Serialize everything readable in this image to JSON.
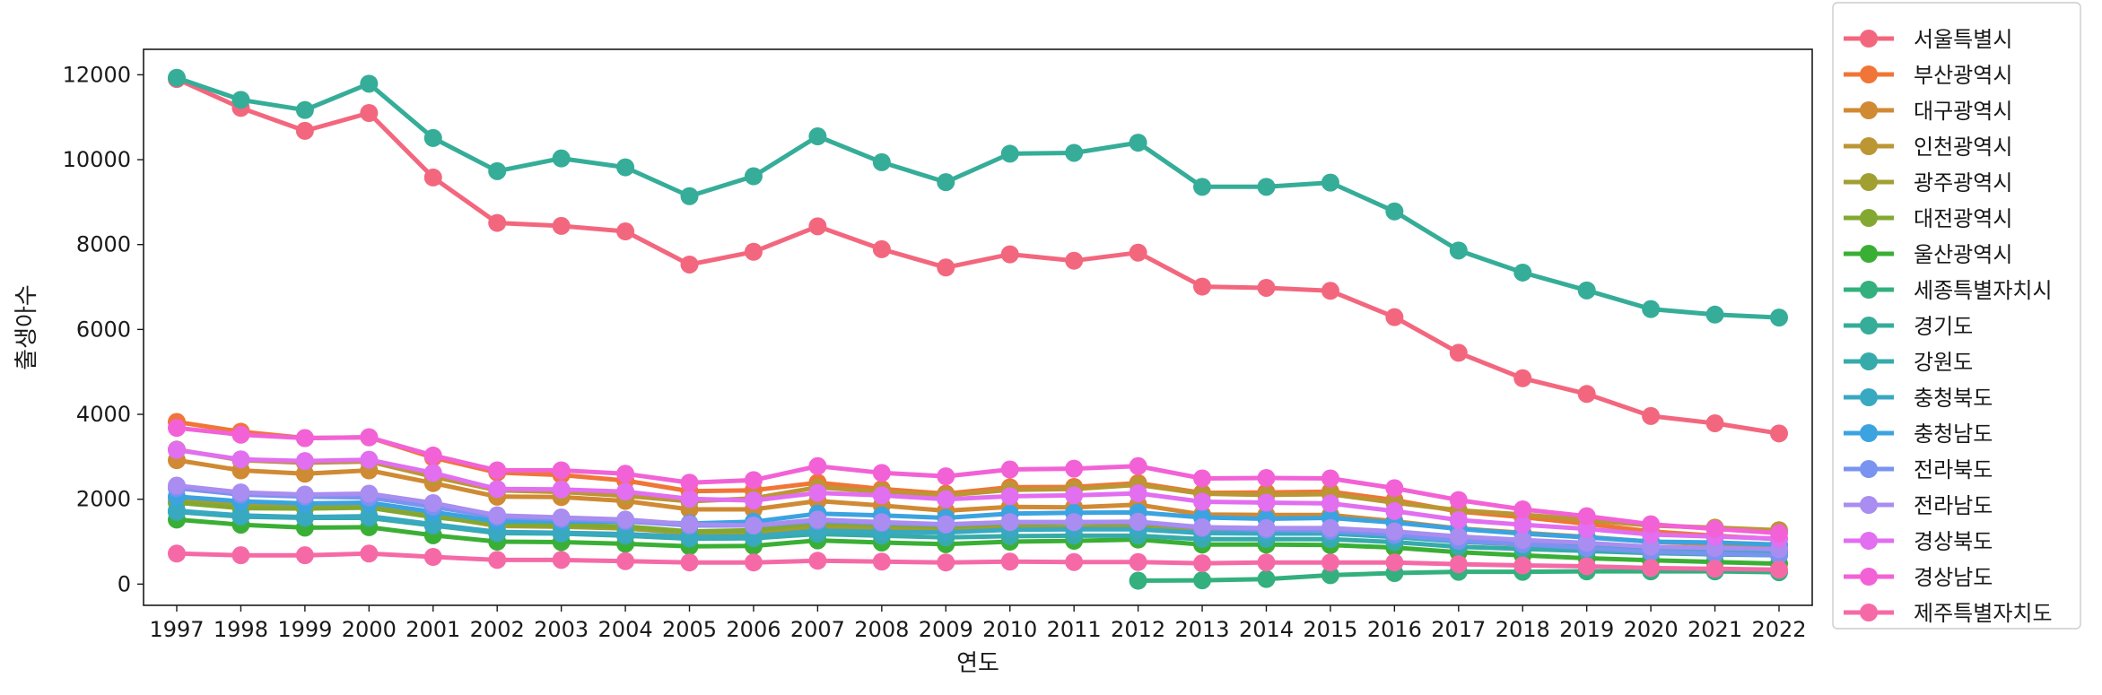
{
  "chart_data": {
    "type": "line",
    "title": "",
    "xlabel": "연도",
    "ylabel": "출생아수",
    "categories": [
      "1997",
      "1998",
      "1999",
      "2000",
      "2001",
      "2002",
      "2003",
      "2004",
      "2005",
      "2006",
      "2007",
      "2008",
      "2009",
      "2010",
      "2011",
      "2012",
      "2013",
      "2014",
      "2015",
      "2016",
      "2017",
      "2018",
      "2019",
      "2020",
      "2021",
      "2022"
    ],
    "ylim": [
      -500,
      12600
    ],
    "yticks": [
      0,
      2000,
      4000,
      6000,
      8000,
      10000,
      12000
    ],
    "legend_position": "outside-right",
    "grid": false,
    "markers": true,
    "series": [
      {
        "name": "서울특별시",
        "color": "#f3677e",
        "values": [
          11900,
          11220,
          10680,
          11100,
          9580,
          8510,
          8440,
          8310,
          7530,
          7830,
          8430,
          7890,
          7460,
          7770,
          7620,
          7810,
          7010,
          6980,
          6910,
          6290,
          5450,
          4850,
          4480,
          3960,
          3790,
          3550
        ]
      },
      {
        "name": "부산광역시",
        "color": "#f07537",
        "values": [
          3820,
          3590,
          3440,
          3460,
          2980,
          2630,
          2570,
          2440,
          2190,
          2210,
          2390,
          2240,
          2130,
          2280,
          2290,
          2380,
          2150,
          2160,
          2180,
          1980,
          1710,
          1580,
          1420,
          1240,
          1140,
          1060
        ]
      },
      {
        "name": "대구광역시",
        "color": "#d08a33",
        "values": [
          2920,
          2680,
          2600,
          2680,
          2380,
          2060,
          2050,
          1960,
          1760,
          1760,
          1960,
          1850,
          1730,
          1820,
          1810,
          1870,
          1640,
          1630,
          1630,
          1480,
          1310,
          1210,
          1110,
          1000,
          940,
          890
        ]
      },
      {
        "name": "인천광역시",
        "color": "#bb9633",
        "values": [
          3170,
          2920,
          2860,
          2890,
          2530,
          2210,
          2170,
          2080,
          1950,
          2020,
          2280,
          2180,
          2090,
          2220,
          2240,
          2340,
          2130,
          2100,
          2120,
          1920,
          1740,
          1640,
          1510,
          1380,
          1330,
          1270
        ]
      },
      {
        "name": "광주광역시",
        "color": "#a19f32",
        "values": [
          2020,
          1850,
          1850,
          1850,
          1610,
          1370,
          1350,
          1310,
          1200,
          1200,
          1360,
          1320,
          1280,
          1340,
          1330,
          1350,
          1230,
          1220,
          1220,
          1150,
          1000,
          930,
          860,
          770,
          740,
          700
        ]
      },
      {
        "name": "대전광역시",
        "color": "#83a831",
        "values": [
          1920,
          1790,
          1780,
          1800,
          1580,
          1420,
          1390,
          1360,
          1240,
          1270,
          1450,
          1400,
          1360,
          1430,
          1440,
          1440,
          1330,
          1300,
          1300,
          1170,
          1020,
          960,
          870,
          800,
          770,
          730
        ]
      },
      {
        "name": "울산광역시",
        "color": "#3aaf35",
        "values": [
          1520,
          1400,
          1330,
          1340,
          1150,
          1000,
          990,
          950,
          890,
          900,
          1030,
          980,
          940,
          1000,
          1020,
          1050,
          930,
          930,
          920,
          860,
          750,
          680,
          610,
          560,
          520,
          480
        ]
      },
      {
        "name": "세종특별자치시",
        "color": "#33b07d",
        "values": [
          null,
          null,
          null,
          null,
          null,
          null,
          null,
          null,
          null,
          null,
          null,
          null,
          null,
          null,
          null,
          80,
          90,
          120,
          210,
          260,
          290,
          290,
          300,
          300,
          300,
          280
        ]
      },
      {
        "name": "경기도",
        "color": "#35ad98",
        "values": [
          11930,
          11410,
          11170,
          11790,
          10510,
          9730,
          10030,
          9820,
          9140,
          9610,
          10550,
          9940,
          9470,
          10140,
          10160,
          10400,
          9360,
          9360,
          9460,
          8780,
          7860,
          7340,
          6920,
          6480,
          6350,
          6280
        ]
      },
      {
        "name": "강원도",
        "color": "#36abaa",
        "values": [
          1700,
          1590,
          1560,
          1560,
          1380,
          1200,
          1190,
          1140,
          1070,
          1080,
          1180,
          1140,
          1100,
          1130,
          1140,
          1140,
          1060,
          1060,
          1060,
          990,
          880,
          830,
          780,
          730,
          700,
          680
        ]
      },
      {
        "name": "충청북도",
        "color": "#38a9c0",
        "values": [
          1730,
          1620,
          1580,
          1600,
          1410,
          1230,
          1210,
          1180,
          1110,
          1120,
          1260,
          1230,
          1220,
          1280,
          1290,
          1290,
          1200,
          1190,
          1190,
          1110,
          1000,
          940,
          870,
          810,
          790,
          760
        ]
      },
      {
        "name": "충청남도",
        "color": "#3ba3e0",
        "values": [
          2060,
          1950,
          1900,
          1920,
          1700,
          1480,
          1480,
          1470,
          1430,
          1470,
          1660,
          1620,
          1560,
          1660,
          1680,
          1690,
          1570,
          1540,
          1560,
          1450,
          1300,
          1190,
          1100,
          1000,
          980,
          930
        ]
      },
      {
        "name": "전라북도",
        "color": "#7993f0",
        "values": [
          2260,
          2110,
          2060,
          2040,
          1820,
          1580,
          1530,
          1480,
          1380,
          1380,
          1490,
          1440,
          1400,
          1460,
          1460,
          1460,
          1320,
          1280,
          1260,
          1160,
          1020,
          940,
          850,
          760,
          720,
          680
        ]
      },
      {
        "name": "전라남도",
        "color": "#a98df0",
        "values": [
          2320,
          2160,
          2110,
          2130,
          1910,
          1620,
          1570,
          1520,
          1410,
          1380,
          1520,
          1460,
          1410,
          1460,
          1460,
          1470,
          1340,
          1320,
          1320,
          1240,
          1120,
          1040,
          970,
          880,
          850,
          820
        ]
      },
      {
        "name": "경상북도",
        "color": "#e26ef0",
        "values": [
          3160,
          2940,
          2900,
          2930,
          2620,
          2240,
          2230,
          2180,
          2010,
          1970,
          2150,
          2090,
          2000,
          2070,
          2090,
          2140,
          1940,
          1920,
          1900,
          1720,
          1510,
          1400,
          1300,
          1170,
          1120,
          1070
        ]
      },
      {
        "name": "경상남도",
        "color": "#f262d6",
        "values": [
          3680,
          3520,
          3440,
          3460,
          3030,
          2680,
          2680,
          2600,
          2390,
          2450,
          2780,
          2620,
          2540,
          2700,
          2720,
          2780,
          2490,
          2500,
          2490,
          2260,
          1980,
          1760,
          1600,
          1410,
          1300,
          1200
        ]
      },
      {
        "name": "제주특별자치도",
        "color": "#f56aa6",
        "values": [
          720,
          680,
          680,
          720,
          640,
          570,
          570,
          540,
          510,
          510,
          550,
          530,
          510,
          530,
          520,
          520,
          490,
          510,
          510,
          510,
          470,
          440,
          420,
          380,
          360,
          340
        ]
      }
    ]
  }
}
